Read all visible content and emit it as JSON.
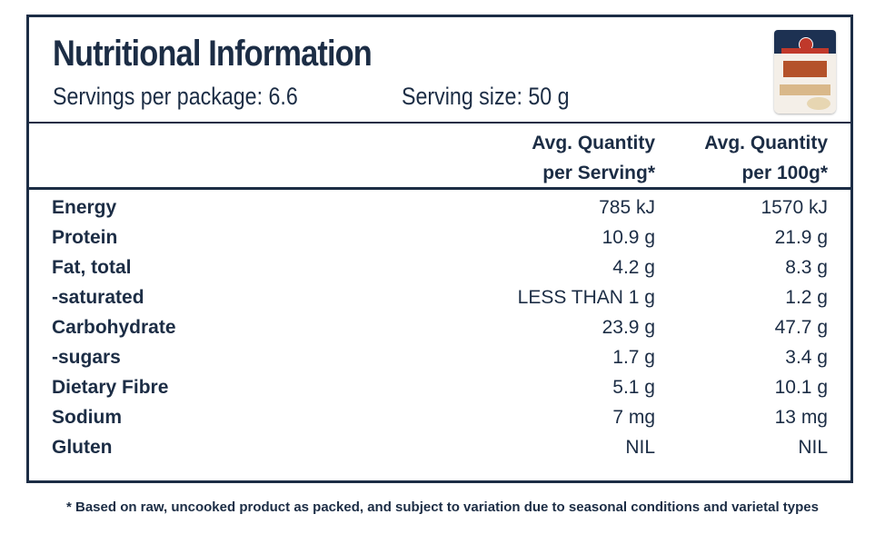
{
  "title": "Nutritional Information",
  "servings_per_package": "Servings per package: 6.6",
  "serving_size": "Serving size: 50 g",
  "product_image": "chick-pea-flour-pack",
  "columns": {
    "per_serving": [
      "Avg. Quantity",
      "per Serving*"
    ],
    "per_100g": [
      "Avg. Quantity",
      "per 100g*"
    ]
  },
  "rows": [
    {
      "label": "Energy",
      "per_serving": "785 kJ",
      "per_100g": "1570 kJ"
    },
    {
      "label": "Protein",
      "per_serving": "10.9 g",
      "per_100g": "21.9 g"
    },
    {
      "label": "Fat, total",
      "per_serving": "4.2 g",
      "per_100g": "8.3 g"
    },
    {
      "label": "-saturated",
      "per_serving": "LESS THAN 1 g",
      "per_100g": "1.2 g"
    },
    {
      "label": "Carbohydrate",
      "per_serving": "23.9 g",
      "per_100g": "47.7 g"
    },
    {
      "label": "-sugars",
      "per_serving": "1.7 g",
      "per_100g": "3.4 g"
    },
    {
      "label": "Dietary Fibre",
      "per_serving": "5.1 g",
      "per_100g": "10.1 g"
    },
    {
      "label": "Sodium",
      "per_serving": "7 mg",
      "per_100g": "13 mg"
    },
    {
      "label": "Gluten",
      "per_serving": "NIL",
      "per_100g": "NIL"
    }
  ],
  "footnote": "* Based on raw, uncooked product as packed, and subject to variation due to seasonal conditions and varietal types",
  "colors": {
    "text": "#1c2d45",
    "border": "#1c2d45"
  }
}
